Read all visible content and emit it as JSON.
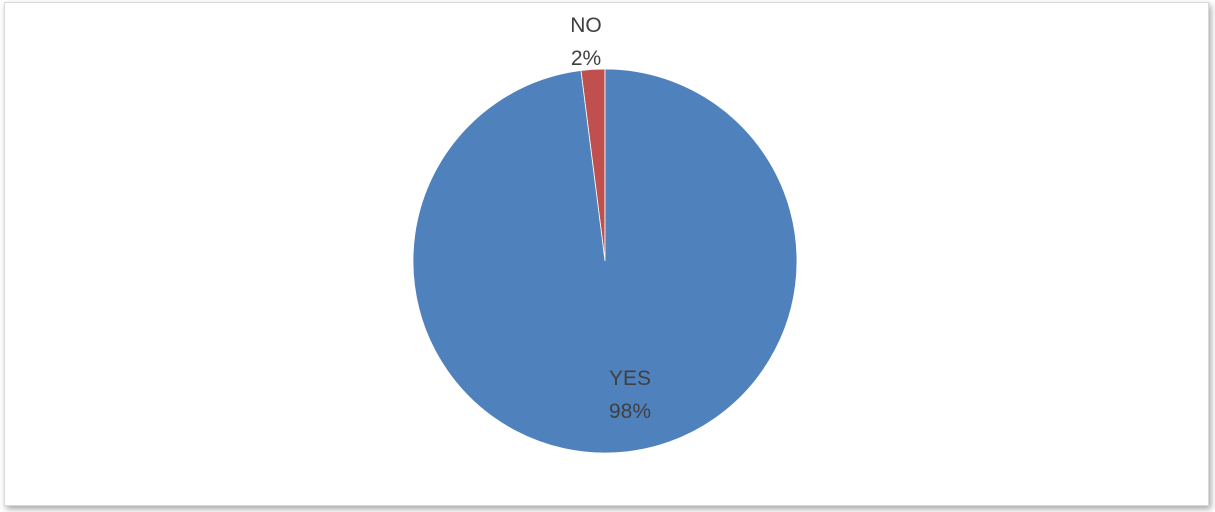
{
  "chart_data": {
    "type": "pie",
    "categories": [
      "NO",
      "YES"
    ],
    "values": [
      2,
      98
    ],
    "value_suffix": "%",
    "colors": [
      "#c0504d",
      "#4f81bd"
    ],
    "legend": "none",
    "data_labels": [
      {
        "category": "NO",
        "percent": "2%"
      },
      {
        "category": "YES",
        "percent": "98%"
      }
    ]
  }
}
